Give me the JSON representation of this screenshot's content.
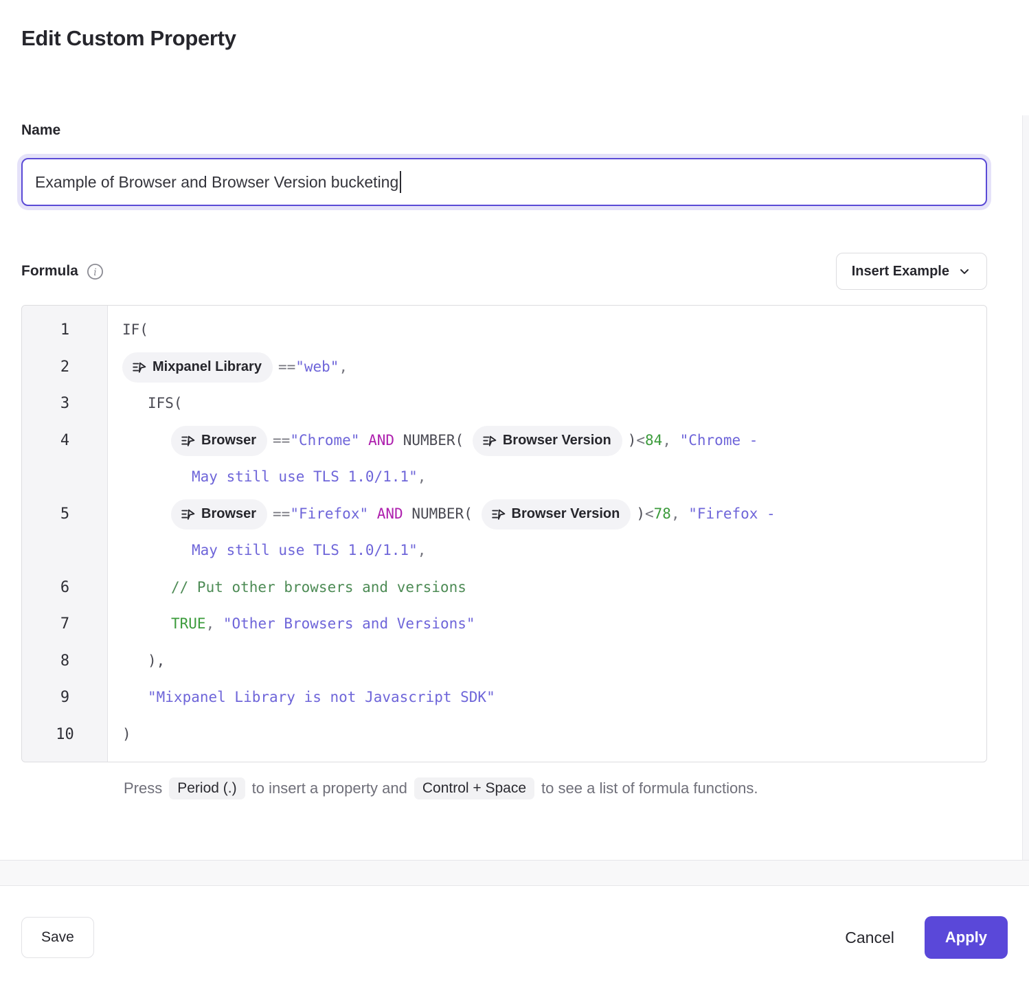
{
  "dialog": {
    "title": "Edit Custom Property"
  },
  "name_section": {
    "label": "Name",
    "value": "Example of Browser and Browser Version bucketing"
  },
  "formula_section": {
    "label": "Formula",
    "info_icon": "info-circle-icon",
    "insert_example": {
      "label": "Insert Example",
      "icon": "chevron-down-icon"
    },
    "editor": {
      "property_chip_icon": "property-icon",
      "lines": [
        {
          "num": "1",
          "indent": 0,
          "tokens": [
            {
              "t": "fn",
              "v": "IF("
            }
          ]
        },
        {
          "num": "2",
          "indent": 0,
          "tokens": [
            {
              "t": "chip",
              "v": "Mixpanel Library"
            },
            {
              "t": "op",
              "v": "=="
            },
            {
              "t": "str",
              "v": "\"web\""
            },
            {
              "t": "op",
              "v": ","
            }
          ]
        },
        {
          "num": "3",
          "indent": 37,
          "tokens": [
            {
              "t": "fn",
              "v": "IFS("
            }
          ]
        },
        {
          "num": "4",
          "indent": 71,
          "wrap_indent": 101,
          "tokens": [
            {
              "t": "chip",
              "v": "Browser"
            },
            {
              "t": "op",
              "v": "=="
            },
            {
              "t": "str",
              "v": "\"Chrome\""
            },
            {
              "t": "kw",
              "v": " AND "
            },
            {
              "t": "fn",
              "v": "NUMBER( "
            },
            {
              "t": "chip",
              "v": "Browser Version"
            },
            {
              "t": "fn",
              "v": ")"
            },
            {
              "t": "op",
              "v": "<"
            },
            {
              "t": "num",
              "v": "84"
            },
            {
              "t": "op",
              "v": ", "
            },
            {
              "t": "str",
              "v": "\"Chrome -"
            }
          ],
          "wrap": [
            {
              "t": "str",
              "v": "May still use TLS 1.0/1.1\""
            },
            {
              "t": "op",
              "v": ","
            }
          ]
        },
        {
          "num": "5",
          "indent": 71,
          "wrap_indent": 101,
          "tokens": [
            {
              "t": "chip",
              "v": "Browser"
            },
            {
              "t": "op",
              "v": "=="
            },
            {
              "t": "str",
              "v": "\"Firefox\""
            },
            {
              "t": "kw",
              "v": " AND "
            },
            {
              "t": "fn",
              "v": "NUMBER( "
            },
            {
              "t": "chip",
              "v": "Browser Version"
            },
            {
              "t": "fn",
              "v": ")"
            },
            {
              "t": "op",
              "v": "<"
            },
            {
              "t": "num",
              "v": "78"
            },
            {
              "t": "op",
              "v": ", "
            },
            {
              "t": "str",
              "v": "\"Firefox -"
            }
          ],
          "wrap": [
            {
              "t": "str",
              "v": "May still use TLS 1.0/1.1\""
            },
            {
              "t": "op",
              "v": ","
            }
          ]
        },
        {
          "num": "6",
          "indent": 71,
          "tokens": [
            {
              "t": "comment",
              "v": "// Put other browsers and versions"
            }
          ]
        },
        {
          "num": "7",
          "indent": 71,
          "tokens": [
            {
              "t": "num",
              "v": "TRUE"
            },
            {
              "t": "op",
              "v": ", "
            },
            {
              "t": "str",
              "v": "\"Other Browsers and Versions\""
            }
          ]
        },
        {
          "num": "8",
          "indent": 37,
          "tokens": [
            {
              "t": "fn",
              "v": "),"
            }
          ]
        },
        {
          "num": "9",
          "indent": 37,
          "tokens": [
            {
              "t": "str",
              "v": "\"Mixpanel Library is not Javascript SDK\""
            }
          ]
        },
        {
          "num": "10",
          "indent": 0,
          "tokens": [
            {
              "t": "fn",
              "v": ")"
            }
          ]
        }
      ]
    },
    "hint": {
      "prefix": "Press",
      "kbd1": "Period (.)",
      "middle": "to insert a property and",
      "kbd2": "Control + Space",
      "suffix": "to see a list of formula functions."
    }
  },
  "footer": {
    "save_label": "Save",
    "cancel_label": "Cancel",
    "apply_label": "Apply"
  },
  "colors": {
    "accent": "#5a48d9",
    "input_focus_border": "#5a4ad6",
    "code_string": "#6e65d9",
    "code_keyword": "#ae21ae",
    "code_number": "#3b9b3b",
    "code_comment": "#4d8b55",
    "code_function": "#4a4a53",
    "code_operator": "#75757e",
    "chip_background": "#f3f3f6",
    "gutter_background": "#f5f5f7"
  }
}
